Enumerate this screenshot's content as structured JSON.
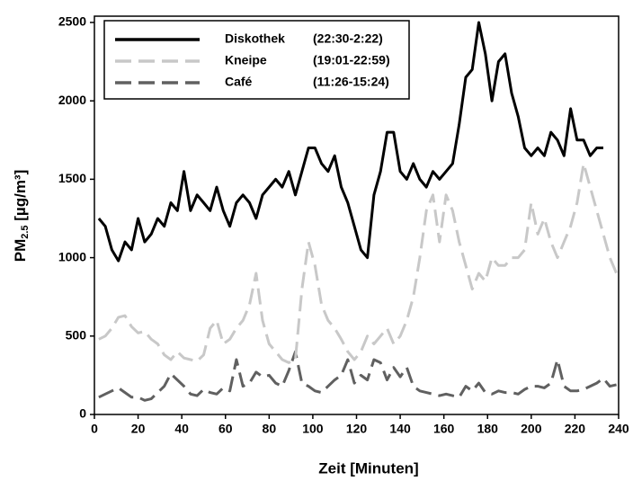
{
  "chart_data": {
    "type": "line",
    "y_label": {
      "main": "PM",
      "sub": "2.5",
      "rest": " [µg/m³]"
    },
    "x_label": "Zeit [Minuten]",
    "x": [
      2,
      5,
      8,
      11,
      14,
      17,
      20,
      23,
      26,
      29,
      32,
      35,
      38,
      41,
      44,
      47,
      50,
      53,
      56,
      59,
      62,
      65,
      68,
      71,
      74,
      77,
      80,
      83,
      86,
      89,
      92,
      95,
      98,
      101,
      104,
      107,
      110,
      113,
      116,
      119,
      122,
      125,
      128,
      131,
      134,
      137,
      140,
      143,
      146,
      149,
      152,
      155,
      158,
      161,
      164,
      167,
      170,
      173,
      176,
      179,
      182,
      185,
      188,
      191,
      194,
      197,
      200,
      203,
      206,
      209,
      212,
      215,
      218,
      221,
      224,
      227,
      230,
      233,
      236,
      239
    ],
    "series": [
      {
        "name": "Diskothek",
        "period": "(22:30-2:22)",
        "color": "#000000",
        "dash": "solid",
        "values": [
          1250,
          1200,
          1050,
          980,
          1100,
          1050,
          1250,
          1100,
          1150,
          1250,
          1200,
          1350,
          1300,
          1550,
          1300,
          1400,
          1350,
          1300,
          1450,
          1300,
          1200,
          1350,
          1400,
          1350,
          1250,
          1400,
          1450,
          1500,
          1450,
          1550,
          1400,
          1550,
          1700,
          1700,
          1600,
          1550,
          1650,
          1450,
          1350,
          1200,
          1050,
          1000,
          1400,
          1550,
          1800,
          1800,
          1550,
          1500,
          1600,
          1500,
          1450,
          1550,
          1500,
          1550,
          1600,
          1850,
          2150,
          2200,
          2500,
          2300,
          2000,
          2250,
          2300,
          2050,
          1900,
          1700,
          1650,
          1700,
          1650,
          1800,
          1750,
          1650,
          1950,
          1750,
          1750,
          1650,
          1700,
          1700,
          null,
          null
        ]
      },
      {
        "name": "Kneipe",
        "period": "(19:01-22:59)",
        "color": "#c8c8c8",
        "dash": "dashed",
        "values": [
          480,
          500,
          550,
          620,
          630,
          560,
          520,
          530,
          480,
          450,
          380,
          350,
          400,
          360,
          350,
          340,
          380,
          550,
          600,
          450,
          480,
          550,
          600,
          700,
          900,
          600,
          450,
          400,
          350,
          330,
          350,
          800,
          1100,
          950,
          700,
          600,
          550,
          480,
          400,
          350,
          400,
          500,
          450,
          500,
          550,
          450,
          500,
          600,
          750,
          1000,
          1300,
          1400,
          1100,
          1400,
          1300,
          1100,
          950,
          800,
          900,
          850,
          1000,
          950,
          950,
          1000,
          1000,
          1050,
          1350,
          1150,
          1250,
          1100,
          1000,
          1100,
          1200,
          1350,
          1600,
          1450,
          1300,
          1150,
          1000,
          900
        ]
      },
      {
        "name": "Café",
        "period": "(11:26-15:24)",
        "color": "#606060",
        "dash": "dashed",
        "values": [
          110,
          130,
          150,
          170,
          140,
          110,
          110,
          90,
          100,
          140,
          180,
          260,
          220,
          180,
          130,
          120,
          160,
          140,
          130,
          170,
          150,
          350,
          180,
          200,
          270,
          240,
          250,
          200,
          180,
          280,
          400,
          200,
          180,
          150,
          140,
          180,
          220,
          250,
          350,
          200,
          250,
          220,
          350,
          330,
          220,
          300,
          240,
          300,
          180,
          150,
          140,
          130,
          120,
          130,
          120,
          110,
          180,
          150,
          200,
          140,
          130,
          150,
          140,
          140,
          130,
          160,
          180,
          180,
          170,
          200,
          350,
          180,
          150,
          150,
          160,
          180,
          200,
          230,
          180,
          190
        ]
      }
    ],
    "xlim": [
      0,
      240
    ],
    "ylim": [
      0,
      2540
    ],
    "xticks": [
      0,
      20,
      40,
      60,
      80,
      100,
      120,
      140,
      160,
      180,
      200,
      220,
      240
    ],
    "yticks": [
      0,
      500,
      1000,
      1500,
      2000,
      2500
    ],
    "grid": false
  }
}
